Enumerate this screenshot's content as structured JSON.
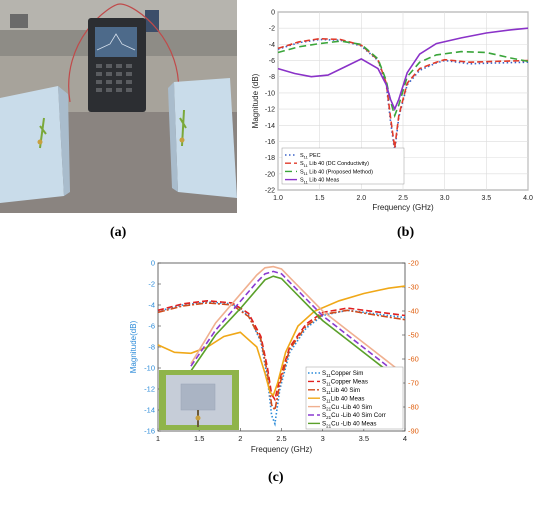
{
  "captions": {
    "a": "(a)",
    "b": "(b)",
    "c": "(c)"
  },
  "chart_data": [
    {
      "type": "line",
      "xlabel": "Frequency (GHz)",
      "ylabel": "Magnitude (dB)",
      "xlim": [
        1.0,
        4.0
      ],
      "ylim": [
        -22,
        0
      ],
      "xticks": [
        "1.0",
        "1.5",
        "2.0",
        "2.5",
        "3.0",
        "3.5",
        "4.0"
      ],
      "yticks": [
        "0",
        "-2",
        "-4",
        "-6",
        "-8",
        "-10",
        "-12",
        "-14",
        "-16",
        "-18",
        "-20",
        "-22"
      ],
      "grid": true,
      "legend_position": "bottom-left",
      "series": [
        {
          "name": "S11 PEC",
          "label_main": "S",
          "label_sub": "11",
          "label_rest": " PEC",
          "color": "#3a62c8",
          "dash": "1.5 2.5",
          "x": [
            1.0,
            1.25,
            1.5,
            1.75,
            2.0,
            2.2,
            2.3,
            2.35,
            2.4,
            2.45,
            2.55,
            2.7,
            2.9,
            3.0,
            3.3,
            3.6,
            4.0
          ],
          "y": [
            -4.6,
            -3.8,
            -3.4,
            -3.5,
            -4.2,
            -6.0,
            -9.0,
            -13.5,
            -17.2,
            -13.0,
            -9.0,
            -7.2,
            -6.3,
            -6.0,
            -6.4,
            -6.3,
            -6.2
          ]
        },
        {
          "name": "S11 Lib 40 (DC Conductivity)",
          "label_main": "S",
          "label_sub": "11",
          "label_rest": " Lib 40 (DC Conductivity)",
          "color": "#e03a2a",
          "dash": "6 3",
          "x": [
            1.0,
            1.25,
            1.5,
            1.75,
            2.0,
            2.2,
            2.3,
            2.35,
            2.4,
            2.45,
            2.55,
            2.7,
            2.9,
            3.0,
            3.3,
            3.6,
            4.0
          ],
          "y": [
            -4.5,
            -3.7,
            -3.3,
            -3.4,
            -4.1,
            -5.9,
            -8.8,
            -13.0,
            -16.8,
            -12.8,
            -8.8,
            -7.0,
            -6.2,
            -5.9,
            -6.2,
            -6.1,
            -6.0
          ]
        },
        {
          "name": "S11 Lib 40 (Proposed Method)",
          "label_main": "S",
          "label_sub": "11",
          "label_rest": " Lib 40 (Proposed Method)",
          "color": "#3aa53a",
          "dash": "7 4",
          "x": [
            1.0,
            1.25,
            1.5,
            1.75,
            2.0,
            2.2,
            2.3,
            2.35,
            2.4,
            2.45,
            2.55,
            2.7,
            2.9,
            3.2,
            3.5,
            3.8,
            4.0
          ],
          "y": [
            -5.0,
            -4.3,
            -3.9,
            -3.6,
            -4.0,
            -5.8,
            -8.5,
            -11.0,
            -12.8,
            -11.5,
            -8.0,
            -6.2,
            -5.3,
            -4.9,
            -5.0,
            -5.7,
            -6.1
          ]
        },
        {
          "name": "S11 Lib 40 Meas",
          "label_main": "S",
          "label_sub": "11",
          "label_rest": " Lib 40 Meas",
          "color": "#8a32c8",
          "dash": "",
          "x": [
            1.0,
            1.2,
            1.4,
            1.6,
            1.8,
            2.0,
            2.2,
            2.3,
            2.35,
            2.4,
            2.45,
            2.55,
            2.7,
            2.9,
            3.2,
            3.5,
            3.8,
            4.0
          ],
          "y": [
            -7.0,
            -7.6,
            -8.0,
            -7.8,
            -6.8,
            -5.8,
            -7.0,
            -9.0,
            -10.8,
            -12.0,
            -10.8,
            -7.5,
            -5.2,
            -3.9,
            -3.2,
            -2.6,
            -2.2,
            -2.0
          ]
        }
      ]
    },
    {
      "type": "line",
      "xlabel": "Frequency (GHz)",
      "ylabel": "Magnitude(dB)",
      "xlim": [
        1.0,
        4.0
      ],
      "ylim": [
        -16,
        0
      ],
      "y2lim": [
        -90,
        -20
      ],
      "xticks": [
        "1",
        "1.5",
        "2",
        "2.5",
        "3",
        "3.5",
        "4"
      ],
      "yticks": [
        "0",
        "-2",
        "-4",
        "-6",
        "-8",
        "-10",
        "-12",
        "-14",
        "-16"
      ],
      "y2ticks": [
        "-20",
        "-30",
        "-40",
        "-50",
        "-60",
        "-70",
        "-80",
        "-90"
      ],
      "grid": false,
      "legend_position": "bottom-right",
      "series": [
        {
          "name": "S11Copper Sim",
          "label_main": "S",
          "label_sub": "11",
          "label_rest": "Copper Sim",
          "axis": "left",
          "color": "#2a8ad8",
          "dash": "1.5 2",
          "x": [
            1.0,
            1.3,
            1.6,
            1.9,
            2.1,
            2.25,
            2.33,
            2.38,
            2.42,
            2.48,
            2.6,
            2.8,
            3.0,
            3.3,
            3.6,
            4.0
          ],
          "y": [
            -4.6,
            -4.0,
            -3.7,
            -3.9,
            -5.0,
            -7.5,
            -11.0,
            -14.5,
            -15.3,
            -12.0,
            -8.5,
            -6.2,
            -5.0,
            -4.5,
            -4.8,
            -5.2
          ]
        },
        {
          "name": "S11Copper Meas",
          "label_main": "S",
          "label_sub": "11",
          "label_rest": "Copper Meas",
          "axis": "left",
          "color": "#e02020",
          "dash": "6 3",
          "x": [
            1.0,
            1.3,
            1.6,
            1.9,
            2.1,
            2.25,
            2.33,
            2.38,
            2.42,
            2.48,
            2.6,
            2.8,
            3.0,
            3.3,
            3.6,
            4.0
          ],
          "y": [
            -4.5,
            -3.9,
            -3.6,
            -3.8,
            -4.8,
            -7.0,
            -10.0,
            -12.5,
            -13.0,
            -11.0,
            -8.0,
            -5.8,
            -4.7,
            -4.3,
            -4.6,
            -5.0
          ]
        },
        {
          "name": "S11Lib 40 Sim",
          "label_main": "S",
          "label_sub": "11",
          "label_rest": "Lib  40 Sim",
          "axis": "left",
          "color": "#d04a1a",
          "dash": "7 2 2 2",
          "x": [
            1.0,
            1.3,
            1.6,
            1.9,
            2.1,
            2.25,
            2.33,
            2.38,
            2.42,
            2.48,
            2.6,
            2.8,
            3.0,
            3.3,
            3.6,
            4.0
          ],
          "y": [
            -4.7,
            -4.1,
            -3.8,
            -4.0,
            -5.1,
            -7.3,
            -10.5,
            -13.5,
            -14.0,
            -11.5,
            -8.2,
            -6.0,
            -4.9,
            -4.5,
            -4.9,
            -5.4
          ]
        },
        {
          "name": "S11Lib 40 Meas",
          "label_main": "S",
          "label_sub": "11",
          "label_rest": "Lib  40 Meas",
          "axis": "left",
          "color": "#f0a818",
          "dash": "",
          "x": [
            1.0,
            1.2,
            1.4,
            1.6,
            1.8,
            2.0,
            2.2,
            2.3,
            2.36,
            2.4,
            2.45,
            2.55,
            2.7,
            2.9,
            3.2,
            3.5,
            3.8,
            4.0
          ],
          "y": [
            -7.8,
            -8.5,
            -8.6,
            -8.0,
            -7.0,
            -6.6,
            -8.0,
            -10.5,
            -12.3,
            -12.6,
            -11.5,
            -8.5,
            -6.0,
            -4.6,
            -3.6,
            -2.9,
            -2.4,
            -2.2
          ]
        },
        {
          "name": "S21Cu -Lib 40 Sim",
          "label_main": "S",
          "label_sub": "21",
          "label_rest": "Cu -Lib 40 Sim",
          "axis": "right",
          "color": "#f0b090",
          "dash": "",
          "x": [
            1.4,
            1.7,
            2.0,
            2.2,
            2.3,
            2.4,
            2.5,
            2.6,
            2.8,
            3.0,
            3.3,
            3.6,
            3.9
          ],
          "y": [
            -62,
            -45,
            -33,
            -25,
            -22,
            -21.5,
            -22.5,
            -26,
            -33,
            -40,
            -48,
            -56,
            -64
          ]
        },
        {
          "name": "S21Cu -Lib 40 Sim Corr",
          "label_main": "S",
          "label_sub": "21",
          "label_rest": "Cu -Lib 40 Sim Corr",
          "axis": "right",
          "color": "#8a3ad0",
          "dash": "6 3",
          "x": [
            1.4,
            1.7,
            2.0,
            2.2,
            2.3,
            2.4,
            2.5,
            2.6,
            2.8,
            3.0,
            3.3,
            3.6,
            3.9
          ],
          "y": [
            -63,
            -48,
            -36,
            -28,
            -24.5,
            -23.5,
            -24.5,
            -28,
            -35,
            -42,
            -50,
            -58,
            -66
          ]
        },
        {
          "name": "S21Cu -Lib 40 Meas",
          "label_main": "S",
          "label_sub": "21",
          "label_rest": "Cu -Lib 40 Meas",
          "axis": "right",
          "color": "#5aa02a",
          "dash": "",
          "x": [
            1.4,
            1.7,
            2.0,
            2.2,
            2.3,
            2.4,
            2.5,
            2.6,
            2.8,
            3.0,
            3.3,
            3.6,
            3.9
          ],
          "y": [
            -65,
            -50,
            -39,
            -31,
            -27,
            -25.5,
            -26.5,
            -30,
            -37,
            -44,
            -52,
            -60,
            -68
          ]
        }
      ]
    }
  ]
}
